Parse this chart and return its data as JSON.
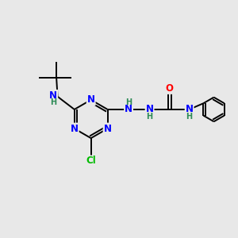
{
  "background_color": "#e8e8e8",
  "bond_color": "#000000",
  "atom_colors": {
    "N": "#0000ff",
    "O": "#ff0000",
    "Cl": "#00bb00",
    "H_label": "#2e8b57",
    "C": "#000000"
  },
  "figsize": [
    3.0,
    3.0
  ],
  "dpi": 100,
  "xlim": [
    0,
    10
  ],
  "ylim": [
    0,
    10
  ]
}
